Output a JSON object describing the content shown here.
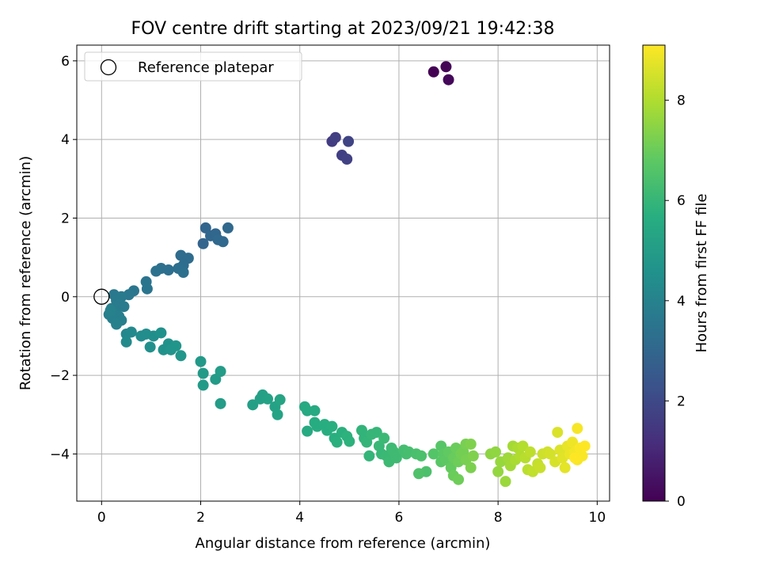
{
  "chart_data": {
    "type": "scatter",
    "title": "FOV centre drift starting at 2023/09/21 19:42:38",
    "xlabel": "Angular distance from reference (arcmin)",
    "ylabel": "Rotation from reference (arcmin)",
    "xlim": [
      -0.5,
      10.25
    ],
    "ylim": [
      -5.2,
      6.4
    ],
    "xticks": [
      0,
      2,
      4,
      6,
      8,
      10
    ],
    "yticks": [
      -4,
      -2,
      0,
      2,
      4,
      6
    ],
    "grid": true,
    "legend": {
      "placement": "top-left",
      "entries": [
        "Reference platepar"
      ]
    },
    "reference_point": {
      "x": 0,
      "y": 0
    },
    "colorbar": {
      "label": "Hours from first FF file",
      "range": [
        0,
        9.1
      ],
      "ticks": [
        0,
        2,
        4,
        6,
        8
      ],
      "colormap": "viridis"
    },
    "points": [
      {
        "x": 6.7,
        "y": 5.72,
        "c": 0.0
      },
      {
        "x": 6.95,
        "y": 5.85,
        "c": 0.1
      },
      {
        "x": 7.0,
        "y": 5.52,
        "c": 0.15
      },
      {
        "x": 4.65,
        "y": 3.95,
        "c": 1.6
      },
      {
        "x": 4.72,
        "y": 4.05,
        "c": 1.65
      },
      {
        "x": 4.85,
        "y": 3.6,
        "c": 1.7
      },
      {
        "x": 4.95,
        "y": 3.5,
        "c": 1.75
      },
      {
        "x": 4.98,
        "y": 3.95,
        "c": 1.8
      },
      {
        "x": 2.05,
        "y": 1.35,
        "c": 2.9
      },
      {
        "x": 2.1,
        "y": 1.75,
        "c": 2.95
      },
      {
        "x": 2.2,
        "y": 1.55,
        "c": 3.0
      },
      {
        "x": 2.3,
        "y": 1.6,
        "c": 3.0
      },
      {
        "x": 2.35,
        "y": 1.45,
        "c": 3.05
      },
      {
        "x": 2.45,
        "y": 1.4,
        "c": 3.1
      },
      {
        "x": 2.55,
        "y": 1.75,
        "c": 3.1
      },
      {
        "x": 1.6,
        "y": 1.05,
        "c": 3.2
      },
      {
        "x": 1.75,
        "y": 0.98,
        "c": 3.2
      },
      {
        "x": 1.65,
        "y": 0.8,
        "c": 3.25
      },
      {
        "x": 1.55,
        "y": 0.72,
        "c": 3.3
      },
      {
        "x": 1.35,
        "y": 0.68,
        "c": 3.3
      },
      {
        "x": 1.2,
        "y": 0.72,
        "c": 3.35
      },
      {
        "x": 1.65,
        "y": 0.62,
        "c": 3.35
      },
      {
        "x": 1.1,
        "y": 0.65,
        "c": 3.4
      },
      {
        "x": 0.9,
        "y": 0.38,
        "c": 3.5
      },
      {
        "x": 0.92,
        "y": 0.2,
        "c": 3.5
      },
      {
        "x": 0.65,
        "y": 0.15,
        "c": 3.55
      },
      {
        "x": 0.55,
        "y": 0.05,
        "c": 3.6
      },
      {
        "x": 0.25,
        "y": 0.05,
        "c": 3.65
      },
      {
        "x": 0.4,
        "y": 0.0,
        "c": 3.7
      },
      {
        "x": 0.3,
        "y": -0.1,
        "c": 3.7
      },
      {
        "x": 0.35,
        "y": -0.2,
        "c": 3.75
      },
      {
        "x": 0.45,
        "y": -0.25,
        "c": 3.75
      },
      {
        "x": 0.2,
        "y": -0.3,
        "c": 3.8
      },
      {
        "x": 0.28,
        "y": -0.4,
        "c": 3.8
      },
      {
        "x": 0.15,
        "y": -0.45,
        "c": 3.85
      },
      {
        "x": 0.35,
        "y": -0.5,
        "c": 3.85
      },
      {
        "x": 0.22,
        "y": -0.55,
        "c": 3.9
      },
      {
        "x": 0.4,
        "y": -0.6,
        "c": 3.9
      },
      {
        "x": 0.3,
        "y": -0.7,
        "c": 3.95
      },
      {
        "x": 0.18,
        "y": -0.35,
        "c": 3.95
      },
      {
        "x": 0.5,
        "y": -0.95,
        "c": 4.2
      },
      {
        "x": 0.6,
        "y": -0.9,
        "c": 4.25
      },
      {
        "x": 0.5,
        "y": -1.15,
        "c": 4.3
      },
      {
        "x": 0.8,
        "y": -1.0,
        "c": 4.35
      },
      {
        "x": 0.9,
        "y": -0.95,
        "c": 4.4
      },
      {
        "x": 1.05,
        "y": -1.0,
        "c": 4.45
      },
      {
        "x": 0.98,
        "y": -1.28,
        "c": 4.5
      },
      {
        "x": 1.2,
        "y": -0.92,
        "c": 4.55
      },
      {
        "x": 1.25,
        "y": -1.35,
        "c": 4.6
      },
      {
        "x": 1.35,
        "y": -1.2,
        "c": 4.6
      },
      {
        "x": 1.4,
        "y": -1.35,
        "c": 4.65
      },
      {
        "x": 1.5,
        "y": -1.25,
        "c": 4.7
      },
      {
        "x": 1.6,
        "y": -1.5,
        "c": 4.75
      },
      {
        "x": 2.0,
        "y": -1.65,
        "c": 4.85
      },
      {
        "x": 2.05,
        "y": -1.95,
        "c": 4.9
      },
      {
        "x": 2.05,
        "y": -2.25,
        "c": 4.9
      },
      {
        "x": 2.3,
        "y": -2.1,
        "c": 4.95
      },
      {
        "x": 2.4,
        "y": -1.9,
        "c": 5.0
      },
      {
        "x": 2.4,
        "y": -2.72,
        "c": 5.0
      },
      {
        "x": 3.05,
        "y": -2.75,
        "c": 5.1
      },
      {
        "x": 3.2,
        "y": -2.6,
        "c": 5.15
      },
      {
        "x": 3.25,
        "y": -2.5,
        "c": 5.15
      },
      {
        "x": 3.35,
        "y": -2.6,
        "c": 5.2
      },
      {
        "x": 3.5,
        "y": -2.8,
        "c": 5.2
      },
      {
        "x": 3.55,
        "y": -3.0,
        "c": 5.25
      },
      {
        "x": 3.6,
        "y": -2.62,
        "c": 5.3
      },
      {
        "x": 4.1,
        "y": -2.8,
        "c": 5.5
      },
      {
        "x": 4.15,
        "y": -2.9,
        "c": 5.5
      },
      {
        "x": 4.15,
        "y": -3.42,
        "c": 5.55
      },
      {
        "x": 4.3,
        "y": -2.9,
        "c": 5.55
      },
      {
        "x": 4.3,
        "y": -3.2,
        "c": 5.6
      },
      {
        "x": 4.35,
        "y": -3.3,
        "c": 5.6
      },
      {
        "x": 4.5,
        "y": -3.25,
        "c": 5.65
      },
      {
        "x": 4.55,
        "y": -3.4,
        "c": 5.65
      },
      {
        "x": 4.65,
        "y": -3.3,
        "c": 5.7
      },
      {
        "x": 4.7,
        "y": -3.6,
        "c": 5.7
      },
      {
        "x": 4.75,
        "y": -3.7,
        "c": 5.75
      },
      {
        "x": 4.85,
        "y": -3.45,
        "c": 5.75
      },
      {
        "x": 4.95,
        "y": -3.55,
        "c": 5.8
      },
      {
        "x": 5.0,
        "y": -3.68,
        "c": 5.8
      },
      {
        "x": 5.25,
        "y": -3.4,
        "c": 5.9
      },
      {
        "x": 5.3,
        "y": -3.6,
        "c": 5.9
      },
      {
        "x": 5.35,
        "y": -3.7,
        "c": 5.95
      },
      {
        "x": 5.4,
        "y": -4.05,
        "c": 5.95
      },
      {
        "x": 5.45,
        "y": -3.5,
        "c": 6.0
      },
      {
        "x": 5.55,
        "y": -3.45,
        "c": 6.0
      },
      {
        "x": 5.6,
        "y": -3.8,
        "c": 6.05
      },
      {
        "x": 5.65,
        "y": -4.0,
        "c": 6.05
      },
      {
        "x": 5.7,
        "y": -3.6,
        "c": 6.1
      },
      {
        "x": 5.75,
        "y": -4.05,
        "c": 6.1
      },
      {
        "x": 5.8,
        "y": -4.2,
        "c": 6.15
      },
      {
        "x": 5.85,
        "y": -3.85,
        "c": 6.15
      },
      {
        "x": 5.9,
        "y": -3.95,
        "c": 6.2
      },
      {
        "x": 5.95,
        "y": -4.1,
        "c": 6.2
      },
      {
        "x": 6.1,
        "y": -3.9,
        "c": 6.3
      },
      {
        "x": 6.15,
        "y": -4.0,
        "c": 6.3
      },
      {
        "x": 6.2,
        "y": -3.95,
        "c": 6.35
      },
      {
        "x": 6.35,
        "y": -4.0,
        "c": 6.4
      },
      {
        "x": 6.45,
        "y": -4.05,
        "c": 6.45
      },
      {
        "x": 6.55,
        "y": -4.45,
        "c": 6.45
      },
      {
        "x": 6.4,
        "y": -4.5,
        "c": 6.5
      },
      {
        "x": 6.7,
        "y": -4.0,
        "c": 6.6
      },
      {
        "x": 6.85,
        "y": -3.8,
        "c": 6.65
      },
      {
        "x": 6.85,
        "y": -4.2,
        "c": 6.7
      },
      {
        "x": 6.9,
        "y": -4.0,
        "c": 6.75
      },
      {
        "x": 6.95,
        "y": -4.15,
        "c": 6.8
      },
      {
        "x": 7.0,
        "y": -3.95,
        "c": 6.85
      },
      {
        "x": 7.05,
        "y": -4.35,
        "c": 6.9
      },
      {
        "x": 7.1,
        "y": -4.1,
        "c": 6.95
      },
      {
        "x": 7.1,
        "y": -4.55,
        "c": 7.0
      },
      {
        "x": 7.15,
        "y": -3.85,
        "c": 7.0
      },
      {
        "x": 7.2,
        "y": -4.2,
        "c": 7.05
      },
      {
        "x": 7.2,
        "y": -4.65,
        "c": 7.05
      },
      {
        "x": 7.25,
        "y": -4.0,
        "c": 7.1
      },
      {
        "x": 7.3,
        "y": -3.95,
        "c": 7.15
      },
      {
        "x": 7.35,
        "y": -4.15,
        "c": 7.2
      },
      {
        "x": 7.35,
        "y": -3.75,
        "c": 7.2
      },
      {
        "x": 7.45,
        "y": -4.35,
        "c": 7.25
      },
      {
        "x": 7.45,
        "y": -3.75,
        "c": 7.3
      },
      {
        "x": 7.5,
        "y": -4.05,
        "c": 7.3
      },
      {
        "x": 7.85,
        "y": -4.0,
        "c": 7.5
      },
      {
        "x": 7.95,
        "y": -3.95,
        "c": 7.55
      },
      {
        "x": 8.0,
        "y": -4.45,
        "c": 7.6
      },
      {
        "x": 8.05,
        "y": -4.2,
        "c": 7.65
      },
      {
        "x": 8.15,
        "y": -4.7,
        "c": 7.7
      },
      {
        "x": 8.2,
        "y": -4.1,
        "c": 7.75
      },
      {
        "x": 8.25,
        "y": -4.3,
        "c": 7.8
      },
      {
        "x": 8.3,
        "y": -3.8,
        "c": 7.85
      },
      {
        "x": 8.35,
        "y": -4.15,
        "c": 7.9
      },
      {
        "x": 8.4,
        "y": -3.85,
        "c": 7.95
      },
      {
        "x": 8.45,
        "y": -4.05,
        "c": 8.0
      },
      {
        "x": 8.5,
        "y": -3.8,
        "c": 8.05
      },
      {
        "x": 8.55,
        "y": -4.1,
        "c": 8.1
      },
      {
        "x": 8.6,
        "y": -4.4,
        "c": 8.15
      },
      {
        "x": 8.65,
        "y": -3.95,
        "c": 8.2
      },
      {
        "x": 8.7,
        "y": -4.45,
        "c": 8.25
      },
      {
        "x": 8.8,
        "y": -4.25,
        "c": 8.3
      },
      {
        "x": 8.85,
        "y": -4.35,
        "c": 8.35
      },
      {
        "x": 8.9,
        "y": -4.0,
        "c": 8.4
      },
      {
        "x": 9.0,
        "y": -3.95,
        "c": 8.45
      },
      {
        "x": 9.05,
        "y": -4.0,
        "c": 8.5
      },
      {
        "x": 9.15,
        "y": -4.2,
        "c": 8.55
      },
      {
        "x": 9.2,
        "y": -3.45,
        "c": 8.6
      },
      {
        "x": 9.25,
        "y": -3.9,
        "c": 8.65
      },
      {
        "x": 9.3,
        "y": -4.1,
        "c": 8.7
      },
      {
        "x": 9.35,
        "y": -4.35,
        "c": 8.75
      },
      {
        "x": 9.4,
        "y": -3.8,
        "c": 8.8
      },
      {
        "x": 9.45,
        "y": -4.0,
        "c": 8.85
      },
      {
        "x": 9.5,
        "y": -3.7,
        "c": 8.9
      },
      {
        "x": 9.55,
        "y": -3.95,
        "c": 8.95
      },
      {
        "x": 9.6,
        "y": -3.35,
        "c": 9.0
      },
      {
        "x": 9.6,
        "y": -4.15,
        "c": 9.0
      },
      {
        "x": 9.65,
        "y": -3.85,
        "c": 9.05
      },
      {
        "x": 9.7,
        "y": -4.05,
        "c": 9.05
      },
      {
        "x": 9.75,
        "y": -3.8,
        "c": 9.1
      },
      {
        "x": 9.55,
        "y": -4.1,
        "c": 9.1
      }
    ]
  }
}
